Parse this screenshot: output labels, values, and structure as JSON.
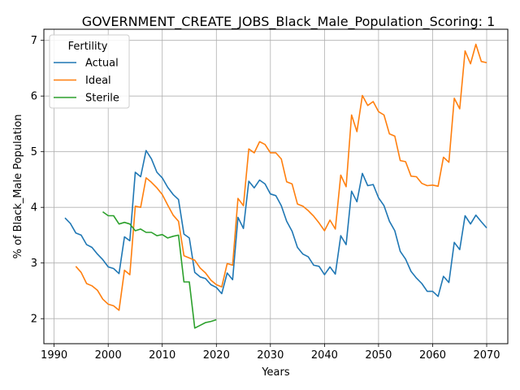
{
  "chart_data": {
    "type": "line",
    "title": "GOVERNMENT_CREATE_JOBS_Black_Male_Population_Scoring: 1",
    "xlabel": "Years",
    "ylabel": "% of Black_Male Population",
    "xlim": [
      1988.1,
      2073.9
    ],
    "ylim": [
      1.55,
      7.2
    ],
    "xticks": [
      1990,
      2000,
      2010,
      2020,
      2030,
      2040,
      2050,
      2060,
      2070
    ],
    "yticks": [
      2,
      3,
      4,
      5,
      6,
      7
    ],
    "grid": true,
    "legend": {
      "title": "Fertility",
      "placement": "top-left"
    },
    "series": [
      {
        "name": "Actual",
        "color": "#1f77b4",
        "x": [
          1992,
          1993,
          1994,
          1995,
          1996,
          1997,
          1998,
          1999,
          2000,
          2001,
          2002,
          2003,
          2004,
          2005,
          2006,
          2007,
          2008,
          2009,
          2010,
          2011,
          2012,
          2013,
          2014,
          2015,
          2016,
          2017,
          2018,
          2019,
          2020,
          2021,
          2022,
          2023,
          2024,
          2025,
          2026,
          2027,
          2028,
          2029,
          2030,
          2031,
          2032,
          2033,
          2034,
          2035,
          2036,
          2037,
          2038,
          2039,
          2040,
          2041,
          2042,
          2043,
          2044,
          2045,
          2046,
          2047,
          2048,
          2049,
          2050,
          2051,
          2052,
          2053,
          2054,
          2055,
          2056,
          2057,
          2058,
          2059,
          2060,
          2061,
          2062,
          2063,
          2064,
          2065,
          2066,
          2067,
          2068,
          2069,
          2070
        ],
        "y": [
          3.81,
          3.71,
          3.54,
          3.5,
          3.33,
          3.28,
          3.16,
          3.06,
          2.93,
          2.9,
          2.81,
          3.47,
          3.4,
          4.63,
          4.55,
          5.02,
          4.87,
          4.63,
          4.53,
          4.36,
          4.23,
          4.14,
          3.52,
          3.45,
          2.83,
          2.75,
          2.72,
          2.61,
          2.56,
          2.45,
          2.82,
          2.7,
          3.82,
          3.62,
          4.47,
          4.35,
          4.49,
          4.42,
          4.24,
          4.21,
          4.03,
          3.75,
          3.57,
          3.28,
          3.16,
          3.11,
          2.96,
          2.94,
          2.79,
          2.93,
          2.8,
          3.49,
          3.33,
          4.29,
          4.1,
          4.61,
          4.39,
          4.41,
          4.17,
          4.03,
          3.75,
          3.58,
          3.21,
          3.07,
          2.85,
          2.73,
          2.63,
          2.49,
          2.49,
          2.4,
          2.76,
          2.65,
          3.37,
          3.24,
          3.85,
          3.7,
          3.86,
          3.74,
          3.63
        ]
      },
      {
        "name": "Ideal",
        "color": "#ff7f0e",
        "x": [
          1994,
          1995,
          1996,
          1997,
          1998,
          1999,
          2000,
          2001,
          2002,
          2003,
          2004,
          2005,
          2006,
          2007,
          2008,
          2009,
          2010,
          2011,
          2012,
          2013,
          2014,
          2015,
          2016,
          2017,
          2018,
          2019,
          2020,
          2021,
          2022,
          2023,
          2024,
          2025,
          2026,
          2027,
          2028,
          2029,
          2030,
          2031,
          2032,
          2033,
          2034,
          2035,
          2036,
          2037,
          2038,
          2039,
          2040,
          2041,
          2042,
          2043,
          2044,
          2045,
          2046,
          2047,
          2048,
          2049,
          2050,
          2051,
          2052,
          2053,
          2054,
          2055,
          2056,
          2057,
          2058,
          2059,
          2060,
          2061,
          2062,
          2063,
          2064,
          2065,
          2066,
          2067,
          2068,
          2069,
          2070
        ],
        "y": [
          2.94,
          2.83,
          2.63,
          2.59,
          2.51,
          2.35,
          2.26,
          2.23,
          2.15,
          2.87,
          2.79,
          4.02,
          4.0,
          4.53,
          4.45,
          4.35,
          4.23,
          4.04,
          3.86,
          3.75,
          3.13,
          3.09,
          3.05,
          2.91,
          2.82,
          2.69,
          2.61,
          2.57,
          2.99,
          2.96,
          4.16,
          4.03,
          5.05,
          4.98,
          5.18,
          5.13,
          4.98,
          4.98,
          4.87,
          4.46,
          4.42,
          4.06,
          4.02,
          3.94,
          3.84,
          3.72,
          3.58,
          3.77,
          3.61,
          4.58,
          4.37,
          5.66,
          5.36,
          6.01,
          5.83,
          5.9,
          5.72,
          5.66,
          5.32,
          5.28,
          4.84,
          4.82,
          4.56,
          4.55,
          4.43,
          4.39,
          4.4,
          4.38,
          4.9,
          4.81,
          5.96,
          5.77,
          6.81,
          6.58,
          6.93,
          6.62,
          6.6
        ]
      },
      {
        "name": "Sterile",
        "color": "#2ca02c",
        "x": [
          1999,
          2000,
          2001,
          2002,
          2003,
          2004,
          2005,
          2006,
          2007,
          2008,
          2009,
          2010,
          2011,
          2012,
          2013,
          2014,
          2015,
          2016,
          2017,
          2018,
          2019,
          2020
        ],
        "y": [
          3.92,
          3.85,
          3.85,
          3.7,
          3.73,
          3.7,
          3.58,
          3.61,
          3.55,
          3.55,
          3.49,
          3.51,
          3.45,
          3.48,
          3.5,
          2.66,
          2.66,
          1.83,
          1.88,
          1.93,
          1.95,
          1.98
        ]
      }
    ]
  }
}
